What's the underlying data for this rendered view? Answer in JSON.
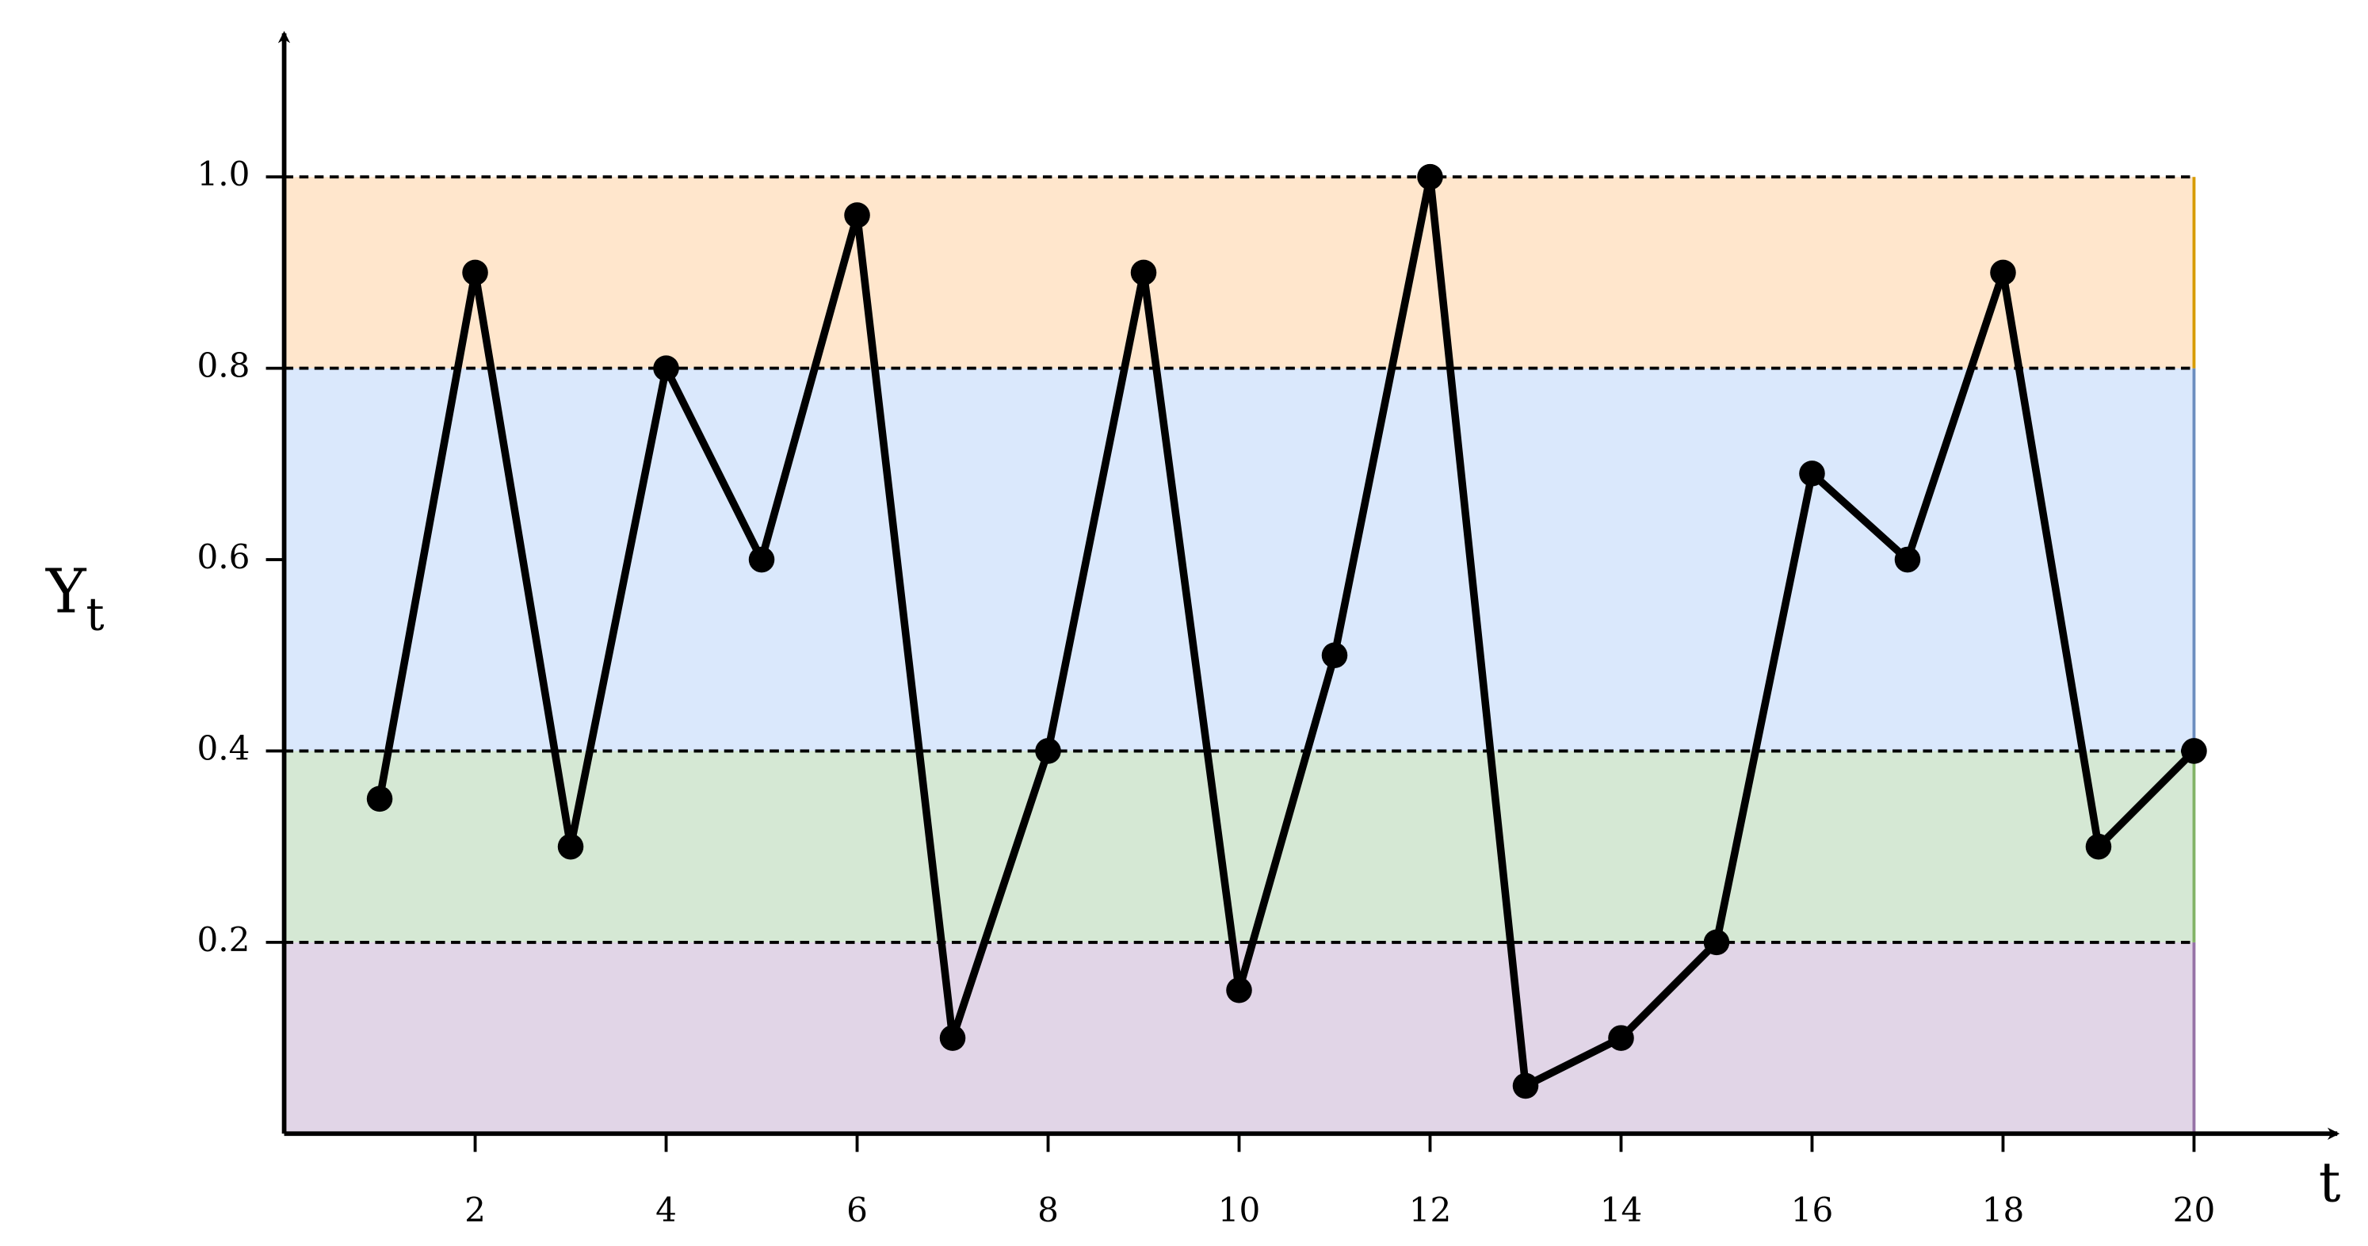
{
  "chart_data": {
    "type": "line",
    "xlabel": "t",
    "ylabel": "Y",
    "ylabel_subscript": "t",
    "x": [
      1,
      2,
      3,
      4,
      5,
      6,
      7,
      8,
      9,
      10,
      11,
      12,
      13,
      14,
      15,
      16,
      17,
      18,
      19,
      20
    ],
    "series": [
      {
        "color": "#000000",
        "values": [
          0.35,
          0.9,
          0.3,
          0.8,
          0.6,
          0.96,
          0.1,
          0.4,
          0.9,
          0.15,
          0.5,
          1.0,
          0.05,
          0.1,
          0.2,
          0.69,
          0.6,
          0.9,
          0.3,
          0.4
        ]
      }
    ],
    "xlim": [
      0,
      21.5
    ],
    "ylim": [
      0,
      1.15
    ],
    "xticks": [
      2,
      4,
      6,
      8,
      10,
      12,
      14,
      16,
      18,
      20
    ],
    "yticks": [
      0.2,
      0.4,
      0.6,
      0.8,
      {
        "value": 1.0,
        "label": "1.0"
      }
    ],
    "bands": [
      {
        "from": 0,
        "to": 0.2,
        "color": "#e1d5e7",
        "edge": "#9673a6"
      },
      {
        "from": 0.2,
        "to": 0.4,
        "color": "#d5e8d4",
        "edge": "#82b366"
      },
      {
        "from": 0.4,
        "to": 0.8,
        "color": "#dae8fc",
        "edge": "#6c8ebf"
      },
      {
        "from": 0.8,
        "to": 1.0,
        "color": "#ffe6cc",
        "edge": "#d79b00"
      }
    ]
  }
}
